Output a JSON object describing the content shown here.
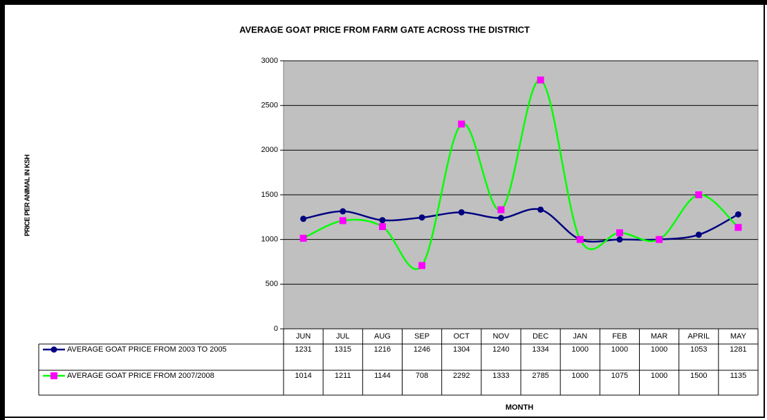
{
  "chart_data": {
    "type": "line",
    "title": "AVERAGE GOAT PRICE FROM FARM GATE ACROSS THE DISTRICT",
    "y_label": "PRICE PER ANIMAL IN KSH",
    "x_label": "MONTH",
    "categories": [
      "JUN",
      "JUL",
      "AUG",
      "SEP",
      "OCT",
      "NOV",
      "DEC",
      "JAN",
      "FEB",
      "MAR",
      "APRIL",
      "MAY"
    ],
    "series": [
      {
        "name": "AVERAGE GOAT PRICE FROM 2003 TO 2005",
        "color": "#000080",
        "marker": "circle",
        "marker_color": "#000080",
        "values": [
          1231,
          1315,
          1216,
          1246,
          1304,
          1240,
          1334,
          1000,
          1000,
          1000,
          1053,
          1281
        ]
      },
      {
        "name": "AVERAGE GOAT PRICE FROM 2007/2008",
        "color": "#00ff00",
        "marker": "square",
        "marker_color": "#ff00ff",
        "values": [
          1014,
          1211,
          1144,
          708,
          2292,
          1333,
          2785,
          1000,
          1075,
          1000,
          1500,
          1135
        ]
      }
    ],
    "ylim": [
      0,
      3000
    ],
    "yticks": [
      0,
      500,
      1000,
      1500,
      2000,
      2500,
      3000
    ],
    "grid": true,
    "plot_background": "#c0c0c0",
    "smooth": true
  }
}
